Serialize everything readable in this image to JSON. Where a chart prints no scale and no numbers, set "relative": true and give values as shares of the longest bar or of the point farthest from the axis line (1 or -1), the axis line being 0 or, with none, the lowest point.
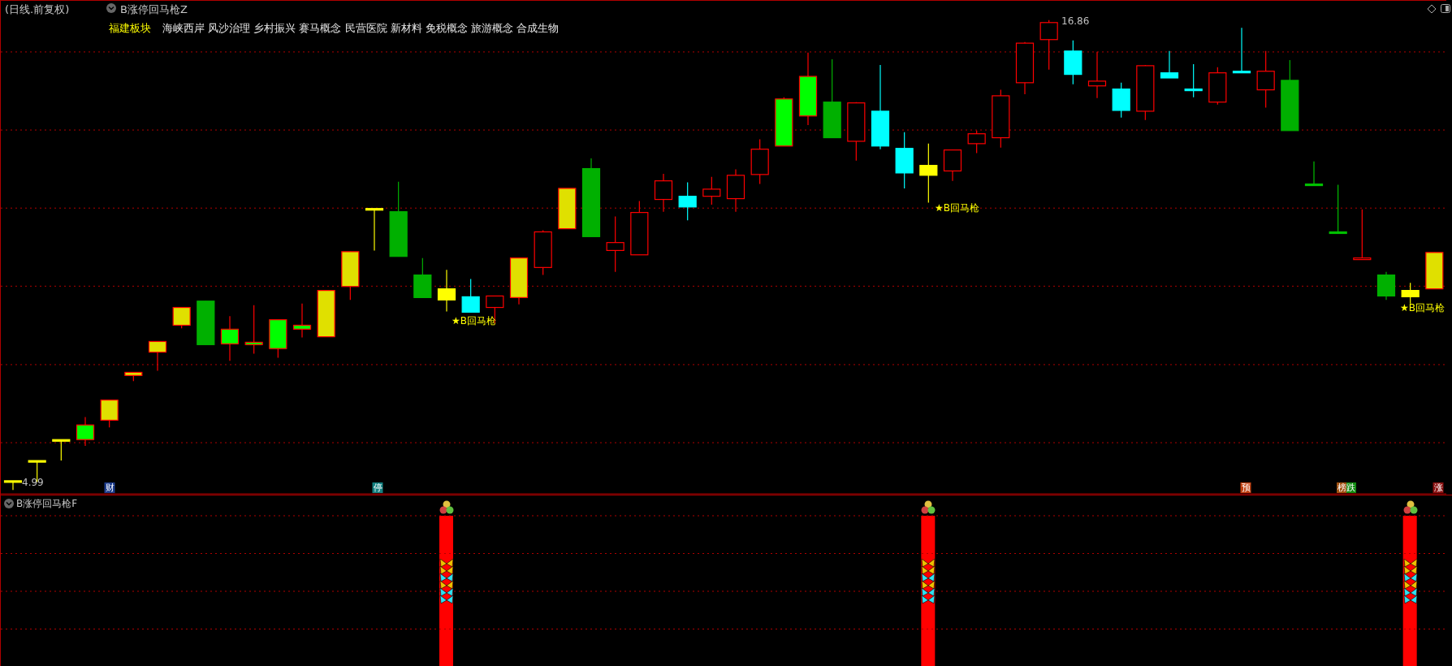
{
  "chart_data": [
    {
      "type": "candlestick",
      "title": "(日线.前复权)",
      "subtitle": "B涨停回马枪Z",
      "categories": [
        null,
        null,
        null,
        null,
        null,
        null,
        null,
        null,
        null,
        null,
        null,
        null,
        null,
        null,
        null,
        null,
        null,
        null,
        null,
        null,
        null,
        null,
        null,
        null,
        null,
        null,
        null,
        null,
        null,
        null,
        null,
        null,
        null,
        null,
        null,
        null,
        null,
        null,
        null,
        null,
        null,
        null,
        null,
        null,
        null,
        null,
        null,
        null,
        null,
        null,
        null,
        null,
        null,
        null,
        null,
        null,
        null,
        null,
        null,
        null
      ],
      "ohlc": [
        [
          5.2,
          5.2,
          4.99,
          5.2
        ],
        [
          5.71,
          5.71,
          5.19,
          5.71
        ],
        [
          6.24,
          6.24,
          5.73,
          6.24
        ],
        [
          6.26,
          6.83,
          6.1,
          6.63
        ],
        [
          6.75,
          7.26,
          6.57,
          7.26
        ],
        [
          7.88,
          7.96,
          7.74,
          7.96
        ],
        [
          8.47,
          8.74,
          8.0,
          8.74
        ],
        [
          9.15,
          9.6,
          9.07,
          9.6
        ],
        [
          9.76,
          9.76,
          8.66,
          8.66
        ],
        [
          8.68,
          9.38,
          8.25,
          9.05
        ],
        [
          8.66,
          9.66,
          8.43,
          8.72
        ],
        [
          8.56,
          9.29,
          8.33,
          9.29
        ],
        [
          9.05,
          9.7,
          8.84,
          9.15
        ],
        [
          8.86,
          10.03,
          8.86,
          10.03
        ],
        [
          10.13,
          11.01,
          9.79,
          11.01
        ],
        [
          12.08,
          12.08,
          11.04,
          12.08
        ],
        [
          12.02,
          12.78,
          10.89,
          10.89
        ],
        [
          10.42,
          10.85,
          9.85,
          9.85
        ],
        [
          10.07,
          10.55,
          9.5,
          9.79
        ],
        [
          9.87,
          10.32,
          9.48,
          9.48
        ],
        [
          9.6,
          9.89,
          9.19,
          9.89
        ],
        [
          9.85,
          10.85,
          9.68,
          10.85
        ],
        [
          10.61,
          11.55,
          10.42,
          11.51
        ],
        [
          11.59,
          12.61,
          11.59,
          12.61
        ],
        [
          13.11,
          13.37,
          11.39,
          11.39
        ],
        [
          11.04,
          11.9,
          10.5,
          11.24
        ],
        [
          10.93,
          12.29,
          10.93,
          12.0
        ],
        [
          12.33,
          12.98,
          12.02,
          12.8
        ],
        [
          12.41,
          12.76,
          11.8,
          12.14
        ],
        [
          12.41,
          12.9,
          12.2,
          12.59
        ],
        [
          12.35,
          13.09,
          12.02,
          12.94
        ],
        [
          12.96,
          13.85,
          12.72,
          13.6
        ],
        [
          13.68,
          14.91,
          13.68,
          14.87
        ],
        [
          14.44,
          16.04,
          14.21,
          15.44
        ],
        [
          14.79,
          15.87,
          13.89,
          13.89
        ],
        [
          13.8,
          14.79,
          13.31,
          14.77
        ],
        [
          14.56,
          15.73,
          13.6,
          13.68
        ],
        [
          13.62,
          14.03,
          12.61,
          13.0
        ],
        [
          13.19,
          13.74,
          12.25,
          12.94
        ],
        [
          13.05,
          13.58,
          12.8,
          13.58
        ],
        [
          13.74,
          14.07,
          13.5,
          13.99
        ],
        [
          13.89,
          15.1,
          13.64,
          14.95
        ],
        [
          15.28,
          16.31,
          14.99,
          16.28
        ],
        [
          16.37,
          16.86,
          15.61,
          16.8
        ],
        [
          16.08,
          16.35,
          15.24,
          15.49
        ],
        [
          15.2,
          16.06,
          14.89,
          15.32
        ],
        [
          15.12,
          15.28,
          14.4,
          14.58
        ],
        [
          14.56,
          15.73,
          14.34,
          15.71
        ],
        [
          15.53,
          16.08,
          15.4,
          15.4
        ],
        [
          15.1,
          15.75,
          14.91,
          15.06
        ],
        [
          14.79,
          15.67,
          14.73,
          15.53
        ],
        [
          15.55,
          16.67,
          15.53,
          15.53
        ],
        [
          15.1,
          16.08,
          14.65,
          15.57
        ],
        [
          15.34,
          15.85,
          14.07,
          14.07
        ],
        [
          12.7,
          13.29,
          12.7,
          12.7
        ],
        [
          11.49,
          12.7,
          11.49,
          11.49
        ],
        [
          10.83,
          12.08,
          10.83,
          10.83
        ],
        [
          10.42,
          10.5,
          9.79,
          9.89
        ],
        [
          10.03,
          10.22,
          9.7,
          9.87
        ],
        [
          10.07,
          10.99,
          10.07,
          10.99
        ]
      ],
      "colors": [
        "#ffff00",
        "#ffff00",
        "#ffff00",
        "#00ff00",
        "#e0e000",
        "#e0e000",
        "#e0e000",
        "#e0e000",
        "#00b000",
        "#00ff00",
        "#00ff00",
        "#00ff00",
        "#00ff00",
        "#e0e000",
        "#e0e000",
        "#ffff00",
        "#00b000",
        "#00b000",
        "#ffff00",
        "#00ffff",
        "#ff0000",
        "#e0e000",
        "#ff0000",
        "#e0e000",
        "#00b000",
        "#ff0000",
        "#ff0000",
        "#ff0000",
        "#00ffff",
        "#ff0000",
        "#ff0000",
        "#ff0000",
        "#00ff00",
        "#00ff00",
        "#00b000",
        "#ff0000",
        "#00ffff",
        "#00ffff",
        "#ffff00",
        "#ff0000",
        "#ff0000",
        "#ff0000",
        "#ff0000",
        "#ff0000",
        "#00ffff",
        "#ff0000",
        "#00ffff",
        "#ff0000",
        "#00ffff",
        "#00ffff",
        "#ff0000",
        "#00ffff",
        "#ff0000",
        "#00b000",
        "#00c000",
        "#00c000",
        "#ff0000",
        "#00b000",
        "#ffff00",
        "#e0e000"
      ],
      "relative": false,
      "ylim": [
        4.89,
        17.35
      ],
      "yticks": [
        {
          "value": 16.06,
          "label": null
        },
        {
          "value": 14.09,
          "label": null
        },
        {
          "value": 12.12,
          "label": null
        },
        {
          "value": 10.15,
          "label": null
        },
        {
          "value": 8.17,
          "label": null
        },
        {
          "value": 6.2,
          "label": null
        }
      ],
      "grid": "y",
      "annotations": [
        "福建板块",
        "海峡西岸 风沙治理 乡村振兴 赛马概念 民营医院 新材料 免税概念 旅游概念 合成生物",
        "★B回马枪",
        "★B回马枪",
        "★B回马枪",
        "16.86",
        "4.99",
        "财",
        "停",
        "预",
        "榜跌",
        "涨"
      ]
    },
    {
      "type": "bar",
      "title": "B涨停回马枪F",
      "relative": true,
      "color": "#ff0000",
      "ref_lines": [
        {
          "axis": "y",
          "value": 1,
          "color": "#b00000",
          "line_style": "dotted"
        },
        {
          "axis": "y",
          "value": 0.75,
          "color": "#b00000",
          "line_style": "dotted"
        },
        {
          "axis": "y",
          "value": 0.5,
          "color": "#b00000",
          "line_style": "dotted"
        },
        {
          "axis": "y",
          "value": 0.25,
          "color": "#b00000",
          "line_style": "dotted"
        }
      ],
      "categories": [
        null,
        null,
        null,
        null,
        null,
        null,
        null,
        null,
        null,
        null,
        null,
        null,
        null,
        null,
        null,
        null,
        null,
        null,
        null,
        null,
        null,
        null,
        null,
        null,
        null,
        null,
        null,
        null,
        null,
        null,
        null,
        null,
        null,
        null,
        null,
        null,
        null,
        null,
        null,
        null,
        null,
        null,
        null,
        null,
        null,
        null,
        null,
        null,
        null,
        null,
        null,
        null,
        null,
        null,
        null,
        null,
        null,
        null,
        null,
        null
      ],
      "values": [
        null,
        null,
        null,
        null,
        null,
        null,
        null,
        null,
        null,
        null,
        null,
        null,
        null,
        null,
        null,
        null,
        null,
        null,
        1,
        null,
        null,
        null,
        null,
        null,
        null,
        null,
        null,
        null,
        null,
        null,
        null,
        null,
        null,
        null,
        null,
        null,
        null,
        null,
        1,
        null,
        null,
        null,
        null,
        null,
        null,
        null,
        null,
        null,
        null,
        null,
        null,
        null,
        null,
        null,
        null,
        null,
        null,
        null,
        1,
        null
      ]
    }
  ]
}
